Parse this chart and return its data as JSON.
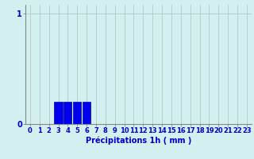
{
  "hours": [
    0,
    1,
    2,
    3,
    4,
    5,
    6,
    7,
    8,
    9,
    10,
    11,
    12,
    13,
    14,
    15,
    16,
    17,
    18,
    19,
    20,
    21,
    22,
    23
  ],
  "values": [
    0,
    0,
    0,
    0.2,
    0.2,
    0.2,
    0.2,
    0,
    0,
    0,
    0,
    0,
    0,
    0,
    0,
    0,
    0,
    0,
    0,
    0,
    0,
    0,
    0,
    0
  ],
  "bar_color": "#0000ee",
  "bar_edge_color": "#000099",
  "background_color": "#d4efef",
  "grid_color_v": "#b0c8c8",
  "grid_color_h": "#b0c8c8",
  "xlabel": "Précipitations 1h ( mm )",
  "xlabel_color": "#0000cc",
  "xlabel_fontsize": 7,
  "ytick_labels": [
    "0",
    "1"
  ],
  "ytick_vals": [
    0,
    1
  ],
  "ylim": [
    0,
    1.08
  ],
  "xlim": [
    -0.5,
    23.5
  ],
  "tick_fontsize": 6,
  "tick_color": "#0000cc"
}
